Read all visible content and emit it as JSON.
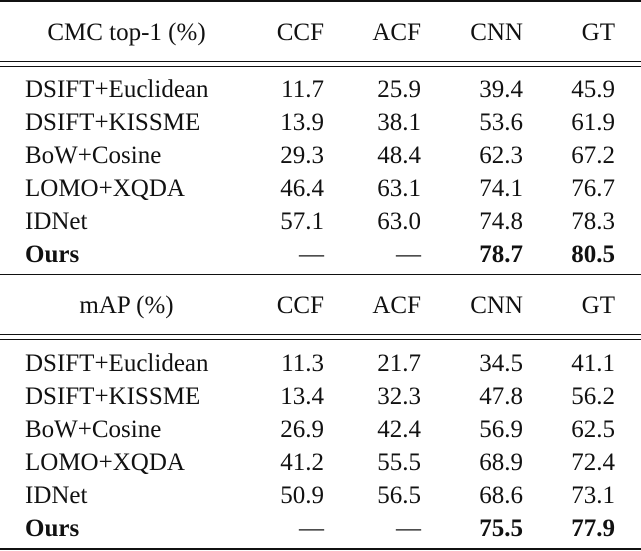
{
  "sections": [
    {
      "title": "CMC top-1 (%)",
      "columns": [
        "CCF",
        "ACF",
        "CNN",
        "GT"
      ],
      "rows": [
        {
          "method": "DSIFT+Euclidean",
          "values": [
            "11.7",
            "25.9",
            "39.4",
            "45.9"
          ]
        },
        {
          "method": "DSIFT+KISSME",
          "values": [
            "13.9",
            "38.1",
            "53.6",
            "61.9"
          ]
        },
        {
          "method": "BoW+Cosine",
          "values": [
            "29.3",
            "48.4",
            "62.3",
            "67.2"
          ]
        },
        {
          "method": "LOMO+XQDA",
          "values": [
            "46.4",
            "63.1",
            "74.1",
            "76.7"
          ]
        },
        {
          "method": "IDNet",
          "values": [
            "57.1",
            "63.0",
            "74.8",
            "78.3"
          ]
        },
        {
          "method": "Ours",
          "values": [
            "—",
            "—",
            "78.7",
            "80.5"
          ]
        }
      ]
    },
    {
      "title": "mAP (%)",
      "columns": [
        "CCF",
        "ACF",
        "CNN",
        "GT"
      ],
      "rows": [
        {
          "method": "DSIFT+Euclidean",
          "values": [
            "11.3",
            "21.7",
            "34.5",
            "41.1"
          ]
        },
        {
          "method": "DSIFT+KISSME",
          "values": [
            "13.4",
            "32.3",
            "47.8",
            "56.2"
          ]
        },
        {
          "method": "BoW+Cosine",
          "values": [
            "26.9",
            "42.4",
            "56.9",
            "62.5"
          ]
        },
        {
          "method": "LOMO+XQDA",
          "values": [
            "41.2",
            "55.5",
            "68.9",
            "72.4"
          ]
        },
        {
          "method": "IDNet",
          "values": [
            "50.9",
            "56.5",
            "68.6",
            "73.1"
          ]
        },
        {
          "method": "Ours",
          "values": [
            "—",
            "—",
            "75.5",
            "77.9"
          ]
        }
      ]
    }
  ]
}
